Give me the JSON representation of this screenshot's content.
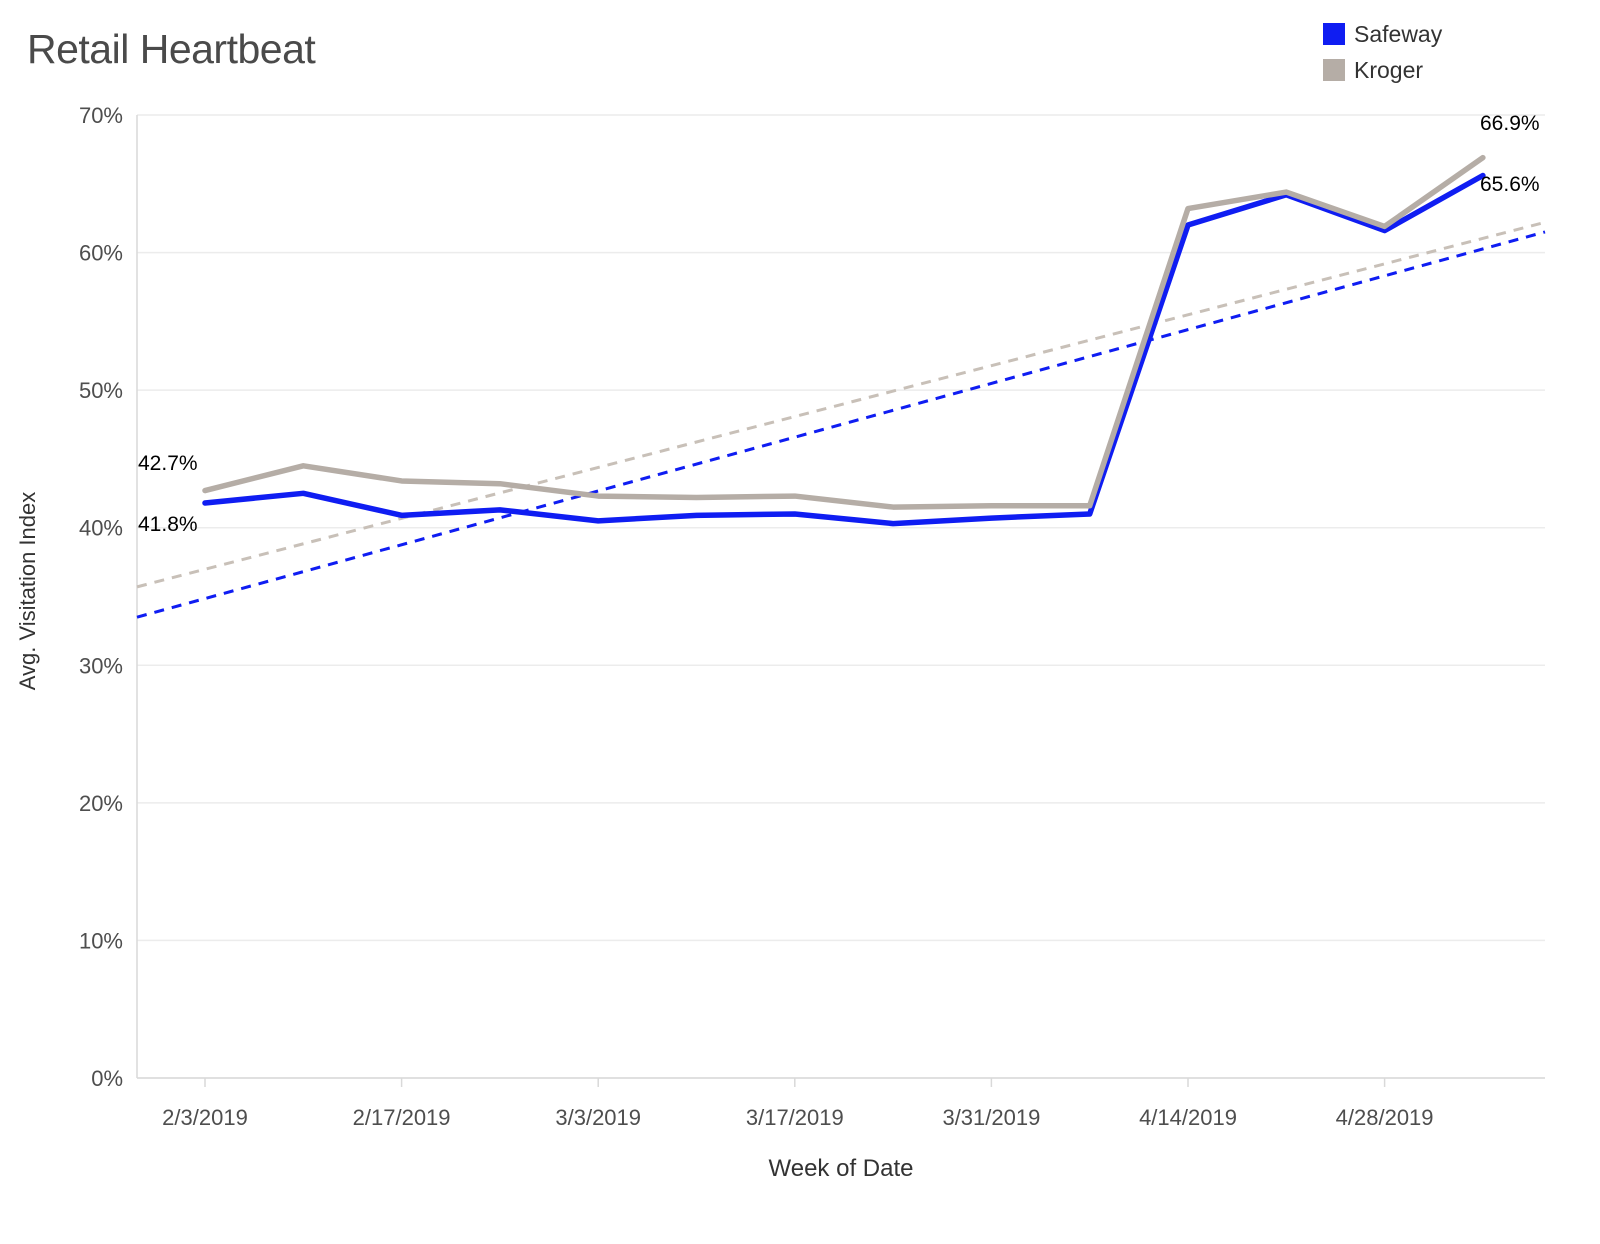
{
  "title": "Retail Heartbeat",
  "legend": {
    "items": [
      {
        "label": "Safeway",
        "color": "#0f1df2"
      },
      {
        "label": "Kroger",
        "color": "#b5ada6"
      }
    ]
  },
  "chart_data": {
    "type": "line",
    "title": "Retail Heartbeat",
    "xlabel": "Week of Date",
    "ylabel": "Avg. Visitation Index",
    "ylim": [
      0,
      70
    ],
    "grid": "horizontal",
    "legend_position": "top-right",
    "y_ticks": [
      "0%",
      "10%",
      "20%",
      "30%",
      "40%",
      "50%",
      "60%",
      "70%"
    ],
    "x": [
      "2/3/2019",
      "2/10/2019",
      "2/17/2019",
      "2/24/2019",
      "3/3/2019",
      "3/10/2019",
      "3/17/2019",
      "3/24/2019",
      "3/31/2019",
      "4/7/2019",
      "4/14/2019",
      "4/21/2019",
      "4/28/2019",
      "5/5/2019"
    ],
    "x_tick_labels": [
      "2/3/2019",
      "2/17/2019",
      "3/3/2019",
      "3/17/2019",
      "3/31/2019",
      "4/14/2019",
      "4/28/2019"
    ],
    "series": [
      {
        "name": "Safeway",
        "color": "#0f1df2",
        "values": [
          41.8,
          42.5,
          40.9,
          41.3,
          40.5,
          40.9,
          41.0,
          40.3,
          40.7,
          41.0,
          62.0,
          64.2,
          61.6,
          65.6
        ]
      },
      {
        "name": "Kroger",
        "color": "#b5ada6",
        "values": [
          42.7,
          44.5,
          43.4,
          43.2,
          42.3,
          42.2,
          42.3,
          41.5,
          41.6,
          41.6,
          63.2,
          64.4,
          61.9,
          66.9
        ]
      }
    ],
    "trend_lines": [
      {
        "name": "Safeway trend",
        "color": "#0f1df2",
        "start": 33.5,
        "end": 61.5
      },
      {
        "name": "Kroger trend",
        "color": "#c8c0b8",
        "start": 35.7,
        "end": 62.2
      }
    ],
    "annotations": [
      {
        "id": "kroger-start",
        "label": "42.7%"
      },
      {
        "id": "safeway-start",
        "label": "41.8%"
      },
      {
        "id": "kroger-end",
        "label": "66.9%"
      },
      {
        "id": "safeway-end",
        "label": "65.6%"
      }
    ]
  }
}
